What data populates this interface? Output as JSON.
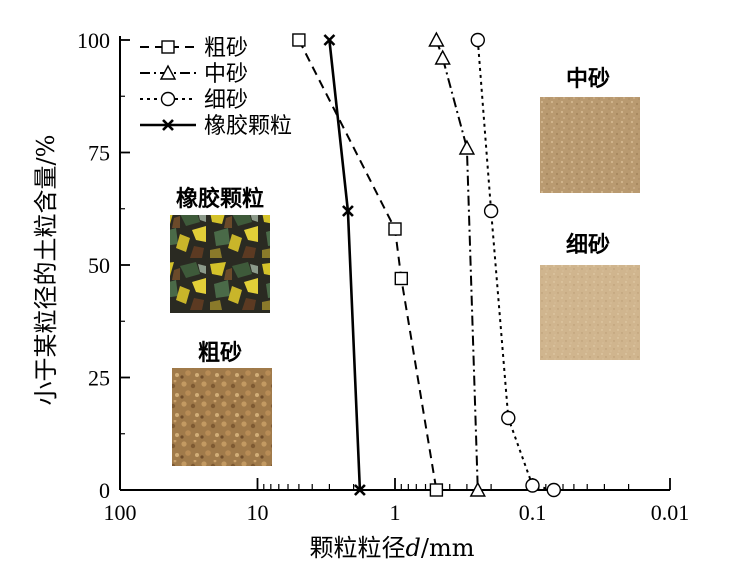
{
  "chart_data": {
    "type": "line",
    "xscale": "log",
    "xaxis_reversed": true,
    "xlim": [
      100,
      0.01
    ],
    "ylim": [
      0,
      100
    ],
    "xticks": [
      {
        "value": 100,
        "label": "100"
      },
      {
        "value": 10,
        "label": "10"
      },
      {
        "value": 1,
        "label": "1"
      },
      {
        "value": 0.1,
        "label": "0.1"
      },
      {
        "value": 0.01,
        "label": "0.01"
      }
    ],
    "yticks": [
      {
        "value": 0,
        "label": "0"
      },
      {
        "value": 25,
        "label": "25"
      },
      {
        "value": 50,
        "label": "50"
      },
      {
        "value": 75,
        "label": "75"
      },
      {
        "value": 100,
        "label": "100"
      }
    ],
    "xlabel_prefix": "颗粒粒径",
    "xlabel_var": "d",
    "xlabel_unit": "/mm",
    "ylabel": "小于某粒径的土粒含量/%",
    "legend_position": "top-left",
    "series": [
      {
        "name": "粗砂",
        "marker": "square",
        "line": "dashed",
        "x": [
          5,
          1,
          0.9,
          0.5
        ],
        "y": [
          100,
          58,
          47,
          0
        ]
      },
      {
        "name": "中砂",
        "marker": "triangle",
        "line": "dashdot",
        "x": [
          0.5,
          0.45,
          0.3,
          0.25
        ],
        "y": [
          100,
          96,
          76,
          0
        ]
      },
      {
        "name": "细砂",
        "marker": "circle",
        "line": "dotted",
        "x": [
          0.25,
          0.2,
          0.15,
          0.1,
          0.07
        ],
        "y": [
          100,
          62,
          16,
          1,
          0
        ]
      },
      {
        "name": "橡胶颗粒",
        "marker": "x",
        "line": "solid",
        "x": [
          3,
          2.2,
          1.8
        ],
        "y": [
          100,
          62,
          0
        ]
      }
    ],
    "insets": [
      {
        "label": "橡胶颗粒",
        "kind": "rubber-photo"
      },
      {
        "label": "粗砂",
        "kind": "coarse-sand-photo"
      },
      {
        "label": "中砂",
        "kind": "medium-sand-photo"
      },
      {
        "label": "细砂",
        "kind": "fine-sand-photo"
      }
    ]
  }
}
